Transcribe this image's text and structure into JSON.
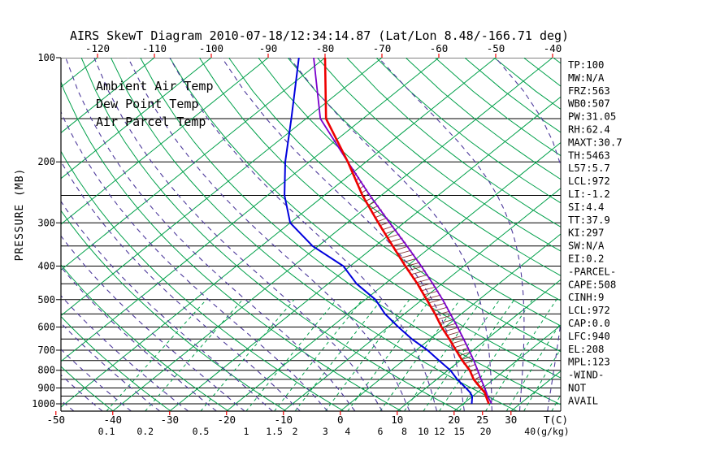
{
  "title": "AIRS SkewT Diagram 2010-07-18/12:34:14.87 (Lat/Lon 8.48/-166.71 deg)",
  "colors": {
    "grid_green": "#00a04a",
    "grid_purple": "#4e3a9c",
    "pressure_line": "#000000",
    "temp": "#ee0000",
    "dewpoint": "#0000dd",
    "parcel": "#7a00cc",
    "hatch": "#803030",
    "axis_red": "#ee0000",
    "axis_blue": "#0000dd",
    "text": "#000000"
  },
  "legend": [
    {
      "label": "Ambient Air Temp",
      "color": "#ee0000"
    },
    {
      "label": "Dew Point Temp",
      "color": "#0000dd"
    },
    {
      "label": "Air Parcel Temp",
      "color": "#7a00cc"
    }
  ],
  "axes": {
    "pressure_label": "PRESSURE (MB)",
    "pressure_ticks": [
      100,
      200,
      300,
      400,
      500,
      600,
      700,
      800,
      900,
      1000
    ],
    "top_temp_ticks": [
      -120,
      -110,
      -100,
      -90,
      -80,
      -70,
      -60,
      -50,
      -40
    ],
    "bottom_temp_ticks": [
      -50,
      -40,
      -30,
      -20,
      -10,
      0,
      10,
      20,
      25,
      30
    ],
    "bottom_temp_unit": "T(C)",
    "mixing_ratio_ticks": [
      0.1,
      0.2,
      0.5,
      1,
      1.5,
      2,
      3,
      4,
      6,
      8,
      10,
      12,
      15,
      20
    ],
    "mixing_ratio_unit_label": "40(g/kg)"
  },
  "stats": [
    "TP:100",
    "MW:N/A",
    "FRZ:563",
    "WB0:507",
    "PW:31.05",
    "RH:62.4",
    "MAXT:30.7",
    "TH:5463",
    "L57:5.7",
    "LCL:972",
    "LI:-1.2",
    "SI:4.4",
    "TT:37.9",
    "KI:297",
    "SW:N/A",
    "EI:0.2",
    "-PARCEL-",
    "CAPE:508",
    "CINH:9",
    "LCL:972",
    "CAP:0.0",
    "LFC:940",
    "EL:208",
    "MPL:123",
    "-WIND-",
    "NOT",
    "AVAIL"
  ],
  "chart_data": {
    "type": "line",
    "subtype": "skew-t-log-p",
    "pressure_unit": "mb",
    "temperature_unit": "C",
    "ylim": [
      100,
      1050
    ],
    "grid": {
      "pressure_lines_mb": {
        "min": 100,
        "max": 1000,
        "step": 50
      },
      "isotherms_c": {
        "min": -120,
        "max": 40,
        "step": 10
      },
      "dry_adiabats_k": {
        "min": 220,
        "max": 450,
        "step": 10
      },
      "moist_adiabats_c": {
        "min": -60,
        "max": 35,
        "step": 5
      },
      "mixing_ratio_gkg": [
        0.1,
        0.2,
        0.5,
        1,
        1.5,
        2,
        3,
        4,
        6,
        8,
        10,
        12,
        15,
        20,
        25,
        30,
        40
      ]
    },
    "cape_hatch": {
      "pressure_bottom": 940,
      "pressure_top": 208
    },
    "series": [
      {
        "name": "Ambient Air Temp",
        "color": "#ee0000",
        "points": [
          [
            1000,
            24.5
          ],
          [
            950,
            22.3
          ],
          [
            925,
            21.2
          ],
          [
            900,
            19.6
          ],
          [
            850,
            16.5
          ],
          [
            800,
            13.8
          ],
          [
            750,
            10.4
          ],
          [
            700,
            7.0
          ],
          [
            650,
            3.4
          ],
          [
            600,
            -0.6
          ],
          [
            550,
            -4.6
          ],
          [
            500,
            -9.2
          ],
          [
            450,
            -14.3
          ],
          [
            400,
            -20.3
          ],
          [
            350,
            -26.9
          ],
          [
            300,
            -34.5
          ],
          [
            250,
            -43.3
          ],
          [
            200,
            -53.2
          ],
          [
            150,
            -66.5
          ],
          [
            100,
            -80.0
          ]
        ]
      },
      {
        "name": "Dew Point Temp",
        "color": "#0000dd",
        "points": [
          [
            1000,
            21.5
          ],
          [
            950,
            19.9
          ],
          [
            925,
            18.6
          ],
          [
            900,
            17.0
          ],
          [
            850,
            13.6
          ],
          [
            800,
            10.4
          ],
          [
            750,
            6.3
          ],
          [
            700,
            2.0
          ],
          [
            650,
            -3.2
          ],
          [
            600,
            -8.2
          ],
          [
            550,
            -13.4
          ],
          [
            500,
            -18.2
          ],
          [
            450,
            -25.0
          ],
          [
            400,
            -31.2
          ],
          [
            350,
            -41.0
          ],
          [
            300,
            -50.0
          ],
          [
            250,
            -57.0
          ],
          [
            200,
            -64.2
          ],
          [
            150,
            -72.6
          ],
          [
            100,
            -84.6
          ]
        ]
      },
      {
        "name": "Air Parcel Temp",
        "color": "#7a00cc",
        "points": [
          [
            1000,
            25.0
          ],
          [
            950,
            22.6
          ],
          [
            925,
            21.5
          ],
          [
            900,
            20.3
          ],
          [
            850,
            17.8
          ],
          [
            800,
            15.2
          ],
          [
            750,
            12.4
          ],
          [
            700,
            9.3
          ],
          [
            650,
            5.9
          ],
          [
            600,
            2.2
          ],
          [
            550,
            -1.9
          ],
          [
            500,
            -6.4
          ],
          [
            450,
            -11.6
          ],
          [
            400,
            -17.5
          ],
          [
            350,
            -24.4
          ],
          [
            300,
            -32.5
          ],
          [
            250,
            -42.0
          ],
          [
            200,
            -53.2
          ],
          [
            150,
            -67.5
          ],
          [
            100,
            -82.0
          ]
        ]
      }
    ]
  }
}
